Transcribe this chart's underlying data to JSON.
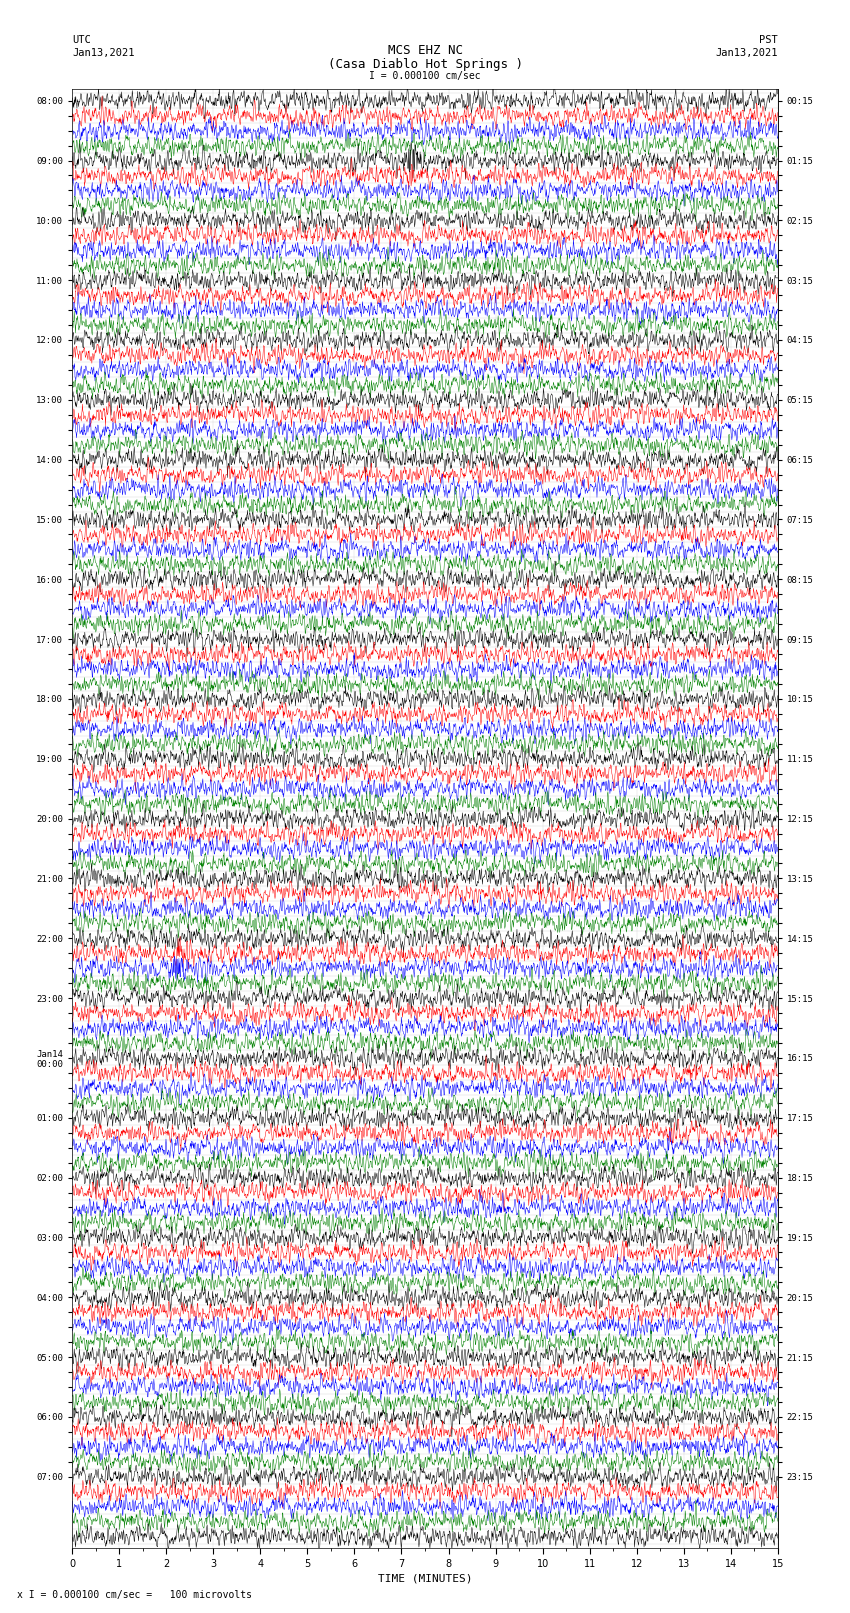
{
  "title_line1": "MCS EHZ NC",
  "title_line2": "(Casa Diablo Hot Springs )",
  "scale_text": "I = 0.000100 cm/sec",
  "bottom_scale_text": "x I = 0.000100 cm/sec =   100 microvolts",
  "xlabel": "TIME (MINUTES)",
  "left_label": "UTC",
  "right_label": "PST",
  "left_date": "Jan13,2021",
  "right_date": "Jan13,2021",
  "utc_times": [
    "08:00",
    "",
    "",
    "",
    "09:00",
    "",
    "",
    "",
    "10:00",
    "",
    "",
    "",
    "11:00",
    "",
    "",
    "",
    "12:00",
    "",
    "",
    "",
    "13:00",
    "",
    "",
    "",
    "14:00",
    "",
    "",
    "",
    "15:00",
    "",
    "",
    "",
    "16:00",
    "",
    "",
    "",
    "17:00",
    "",
    "",
    "",
    "18:00",
    "",
    "",
    "",
    "19:00",
    "",
    "",
    "",
    "20:00",
    "",
    "",
    "",
    "21:00",
    "",
    "",
    "",
    "22:00",
    "",
    "",
    "",
    "23:00",
    "",
    "",
    "",
    "Jan14\n00:00",
    "",
    "",
    "",
    "01:00",
    "",
    "",
    "",
    "02:00",
    "",
    "",
    "",
    "03:00",
    "",
    "",
    "",
    "04:00",
    "",
    "",
    "",
    "05:00",
    "",
    "",
    "",
    "06:00",
    "",
    "",
    "",
    "07:00"
  ],
  "pst_times": [
    "00:15",
    "",
    "",
    "",
    "01:15",
    "",
    "",
    "",
    "02:15",
    "",
    "",
    "",
    "03:15",
    "",
    "",
    "",
    "04:15",
    "",
    "",
    "",
    "05:15",
    "",
    "",
    "",
    "06:15",
    "",
    "",
    "",
    "07:15",
    "",
    "",
    "",
    "08:15",
    "",
    "",
    "",
    "09:15",
    "",
    "",
    "",
    "10:15",
    "",
    "",
    "",
    "11:15",
    "",
    "",
    "",
    "12:15",
    "",
    "",
    "",
    "13:15",
    "",
    "",
    "",
    "14:15",
    "",
    "",
    "",
    "15:15",
    "",
    "",
    "",
    "16:15",
    "",
    "",
    "",
    "17:15",
    "",
    "",
    "",
    "18:15",
    "",
    "",
    "",
    "19:15",
    "",
    "",
    "",
    "20:15",
    "",
    "",
    "",
    "21:15",
    "",
    "",
    "",
    "22:15",
    "",
    "",
    "",
    "23:15"
  ],
  "colors": [
    "black",
    "red",
    "blue",
    "green"
  ],
  "n_rows": 97,
  "n_samples": 1800,
  "noise_amplitude": 0.32,
  "bg_color": "white",
  "trace_lw": 0.35,
  "xmin": 0,
  "xmax": 15,
  "figsize": [
    8.5,
    16.13
  ],
  "dpi": 100,
  "events": [
    {
      "row": 4,
      "x": 7.2,
      "amp": 3.5,
      "color_idx": 0
    },
    {
      "row": 4,
      "x": 7.2,
      "amp": 1.5,
      "color_idx": 1
    },
    {
      "row": 4,
      "x": 7.2,
      "amp": 1.2,
      "color_idx": 2
    },
    {
      "row": 4,
      "x": 7.2,
      "amp": 0.8,
      "color_idx": 3
    },
    {
      "row": 5,
      "x": 7.2,
      "amp": 3.0,
      "color_idx": 0
    },
    {
      "row": 5,
      "x": 7.2,
      "amp": 1.5,
      "color_idx": 1
    },
    {
      "row": 5,
      "x": 7.2,
      "amp": 1.0,
      "color_idx": 2
    },
    {
      "row": 15,
      "x": 13.4,
      "amp": 3.0,
      "color_idx": 2
    },
    {
      "row": 15,
      "x": 13.4,
      "amp": 1.0,
      "color_idx": 0
    },
    {
      "row": 85,
      "x": 13.0,
      "amp": 2.5,
      "color_idx": 0
    },
    {
      "row": 86,
      "x": 13.1,
      "amp": 2.0,
      "color_idx": 3
    },
    {
      "row": 57,
      "x": 2.2,
      "amp": 3.5,
      "color_idx": 2
    },
    {
      "row": 57,
      "x": 2.2,
      "amp": 2.0,
      "color_idx": 1
    },
    {
      "row": 57,
      "x": 2.2,
      "amp": 1.5,
      "color_idx": 0
    },
    {
      "row": 58,
      "x": 2.2,
      "amp": 2.0,
      "color_idx": 2
    },
    {
      "row": 58,
      "x": 2.2,
      "amp": 3.0,
      "color_idx": 1
    }
  ]
}
